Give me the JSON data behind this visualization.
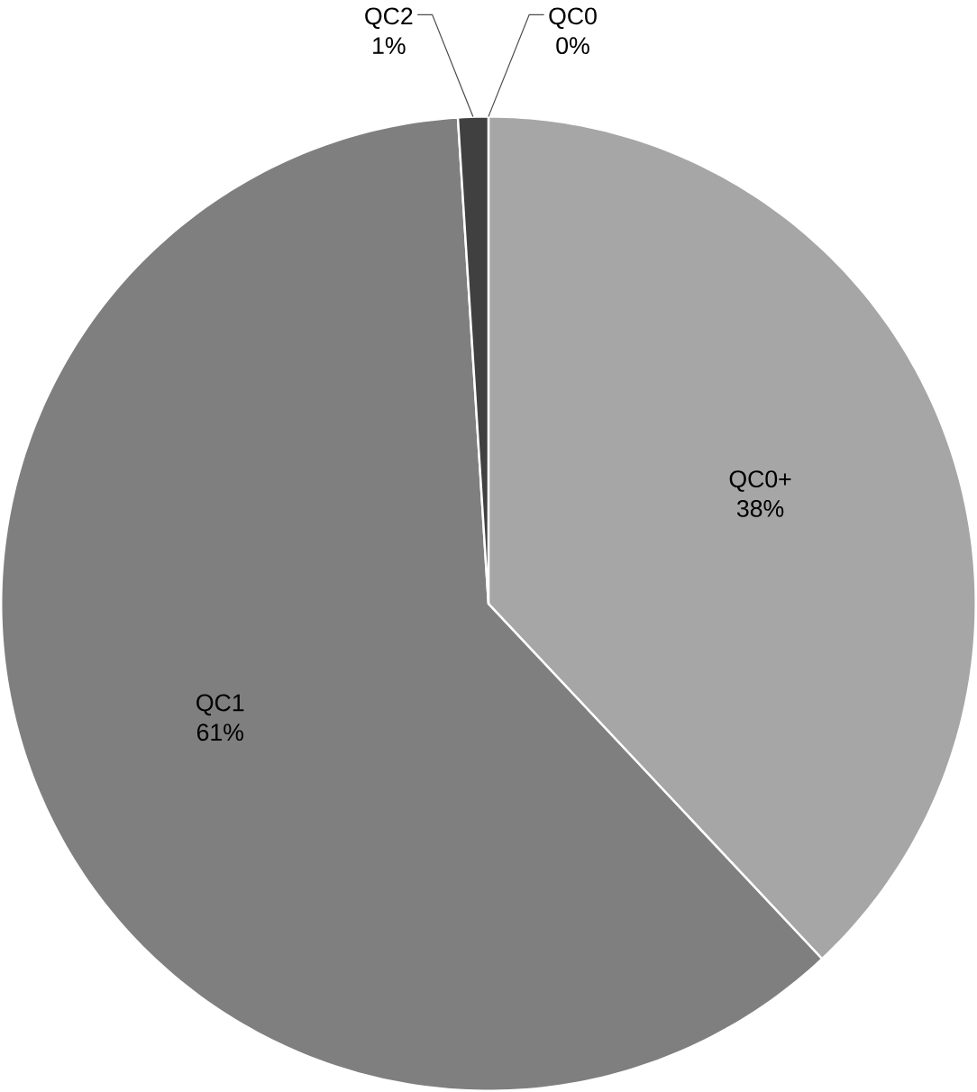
{
  "chart_data": {
    "type": "pie",
    "categories": [
      "QC0",
      "QC0+",
      "QC1",
      "QC2"
    ],
    "values": [
      0,
      38,
      61,
      1
    ],
    "value_labels": [
      "0%",
      "38%",
      "61%",
      "1%"
    ],
    "colors": [
      "#262626",
      "#a6a6a6",
      "#7f7f7f",
      "#404040"
    ]
  }
}
